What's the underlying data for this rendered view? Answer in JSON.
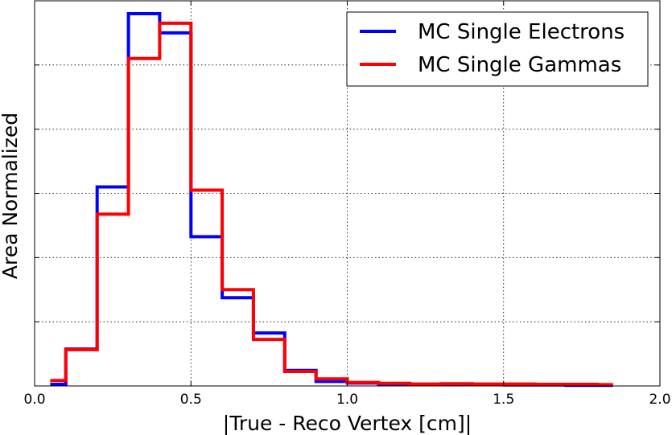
{
  "chart_data": {
    "type": "line",
    "style": "step histogram",
    "xlabel": "|True - Reco Vertex [cm]|",
    "ylabel": "Area Normalized",
    "xlim": [
      0.0,
      2.0
    ],
    "ylim": [
      0,
      1.2
    ],
    "x_ticks": [
      "0.0",
      "0.5",
      "1.0",
      "1.5",
      "2.0"
    ],
    "grid": true,
    "legend_position": "top-right",
    "bin_edges": [
      0.05,
      0.1,
      0.2,
      0.3,
      0.4,
      0.5,
      0.6,
      0.7,
      0.8,
      0.9,
      1.0,
      1.1,
      1.2,
      1.3,
      1.4,
      1.5,
      1.6,
      1.7,
      1.8,
      1.85
    ],
    "series": [
      {
        "name": "MC Single Electrons",
        "color": "#0000ff",
        "values": [
          0.005,
          0.115,
          0.62,
          1.16,
          1.1,
          0.465,
          0.275,
          0.165,
          0.048,
          0.014,
          0.009,
          0.006,
          0.005,
          0.004,
          0.004,
          0.003,
          0.003,
          0.002,
          0.002
        ]
      },
      {
        "name": "MC Single Gammas",
        "color": "#ff0000",
        "values": [
          0.017,
          0.113,
          0.535,
          1.02,
          1.13,
          0.61,
          0.3,
          0.145,
          0.045,
          0.022,
          0.011,
          0.008,
          0.006,
          0.007,
          0.006,
          0.006,
          0.005,
          0.005,
          0.004
        ]
      }
    ]
  }
}
